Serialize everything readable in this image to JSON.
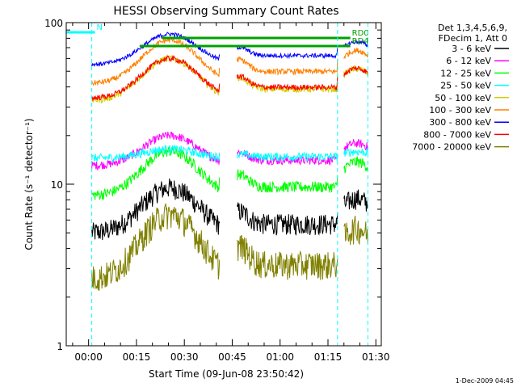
{
  "chart_data": {
    "type": "line",
    "title": "HESSI Observing Summary Count Rates",
    "xlabel": "Start Time (09-Jun-08 23:50:42)",
    "ylabel": "Count Rate (s⁻¹ detector⁻¹)",
    "yscale": "log",
    "ylim": [
      1,
      100
    ],
    "xlim_minutes": [
      -7,
      91.7
    ],
    "x_tick_labels": [
      "00:00",
      "00:15",
      "00:30",
      "00:45",
      "01:00",
      "01:15",
      "01:30"
    ],
    "x_tick_minutes": [
      0,
      15,
      30,
      45,
      60,
      75,
      90
    ],
    "y_tick_labels": [
      "1",
      "10",
      "100"
    ],
    "y_tick_values": [
      1,
      10,
      100
    ],
    "legend_header": [
      "Det 1,3,4,5,6,9,",
      "FDecim 1, Att 0"
    ],
    "legend_position": "right",
    "annotations": [
      {
        "text": "N",
        "color": "#00ffff",
        "start_min": -7,
        "end_min": 2
      },
      {
        "text": "RD4",
        "color": "#00a000",
        "start_min": 16,
        "end_min": 82
      },
      {
        "text": "RD0",
        "color": "#00a000",
        "start_min": 23,
        "end_min": 82
      }
    ],
    "night_boundaries_min": [
      -7,
      1,
      78,
      87.5
    ],
    "date_stamp": "1-Dec-2009 04:45",
    "series": [
      {
        "name": "3 - 6 keV",
        "color": "#000000",
        "base": 5.0,
        "peak": 9.5,
        "noise": 0.15
      },
      {
        "name": "6 - 12 keV",
        "color": "#ff00ff",
        "base": 13.0,
        "peak": 20.0,
        "noise": 0.06
      },
      {
        "name": "12 - 25 keV",
        "color": "#00ff00",
        "base": 8.5,
        "peak": 16.0,
        "noise": 0.08
      },
      {
        "name": "25 - 50 keV",
        "color": "#00ffff",
        "base": 14.5,
        "peak": 16.5,
        "noise": 0.06
      },
      {
        "name": "50 - 100 keV",
        "color": "#d0d000",
        "base": 33.0,
        "peak": 60.0,
        "noise": 0.05
      },
      {
        "name": "100 - 300 keV",
        "color": "#ff8000",
        "base": 42.0,
        "peak": 78.0,
        "noise": 0.04
      },
      {
        "name": "300 - 800 keV",
        "color": "#0000ff",
        "base": 55.0,
        "peak": 85.0,
        "noise": 0.03
      },
      {
        "name": "800 - 7000 keV",
        "color": "#ff0000",
        "base": 34.0,
        "peak": 60.0,
        "noise": 0.04
      },
      {
        "name": "7000 - 20000 keV",
        "color": "#808000",
        "base": 2.6,
        "peak": 6.5,
        "noise": 0.2
      }
    ]
  }
}
